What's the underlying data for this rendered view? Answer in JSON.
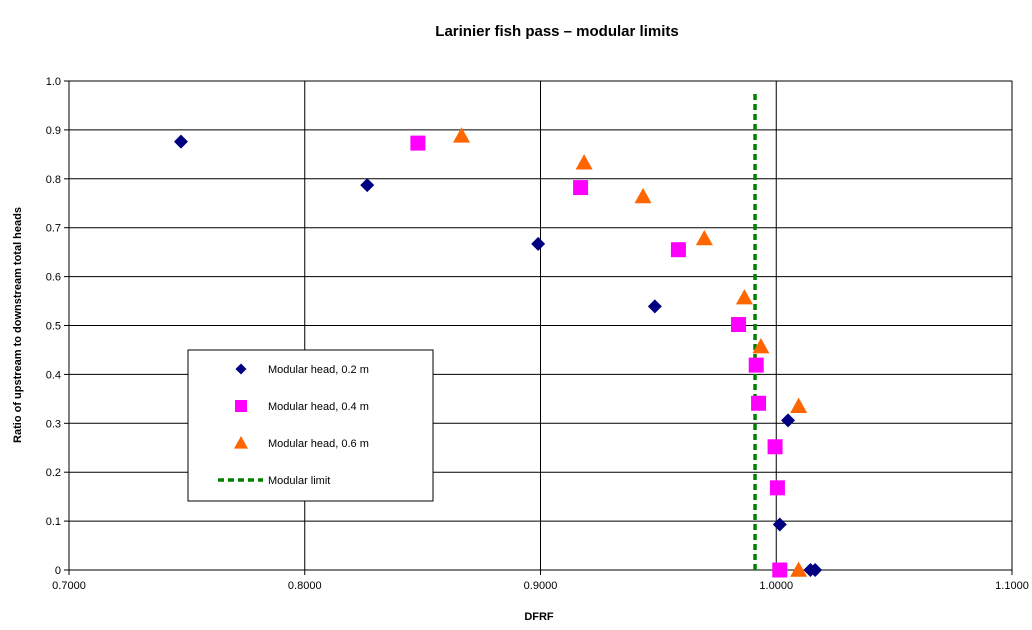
{
  "chart_data": {
    "type": "scatter",
    "title": "Larinier fish pass – modular limits",
    "xlabel": "DFRF",
    "ylabel": "Ratio of upstream to downstream total heads",
    "xlim": [
      0.7,
      1.1
    ],
    "ylim": [
      0,
      1.0
    ],
    "x_ticks": [
      "0.7000",
      "0.8000",
      "0.9000",
      "1.0000",
      "1.1000"
    ],
    "y_ticks": [
      "0",
      "0.1",
      "0.2",
      "0.3",
      "0.4",
      "0.5",
      "0.6",
      "0.7",
      "0.8",
      "0.9",
      "1.0"
    ],
    "grid": true,
    "legend_position": "lower-left",
    "series": [
      {
        "name": "Modular head, 0.2 m",
        "marker": "diamond",
        "color": "#000080",
        "points": [
          [
            0.7475,
            0.876
          ],
          [
            0.8265,
            0.787
          ],
          [
            0.899,
            0.667
          ],
          [
            0.9485,
            0.539
          ],
          [
            1.005,
            0.306
          ],
          [
            1.0015,
            0.093
          ],
          [
            1.0145,
            0.0
          ],
          [
            1.0165,
            0.0
          ]
        ]
      },
      {
        "name": "Modular head, 0.4 m",
        "marker": "square",
        "color": "#FF00FF",
        "points": [
          [
            0.848,
            0.873
          ],
          [
            0.917,
            0.782
          ],
          [
            0.9585,
            0.655
          ],
          [
            0.984,
            0.502
          ],
          [
            0.9915,
            0.419
          ],
          [
            0.9925,
            0.341
          ],
          [
            0.9995,
            0.252
          ],
          [
            1.0005,
            0.168
          ],
          [
            1.0015,
            0.0
          ]
        ]
      },
      {
        "name": "Modular head, 0.6 m",
        "marker": "triangle",
        "color": "#FF6600",
        "points": [
          [
            0.8665,
            0.888
          ],
          [
            0.9185,
            0.833
          ],
          [
            0.9435,
            0.764
          ],
          [
            0.9695,
            0.678
          ],
          [
            0.9865,
            0.557
          ],
          [
            0.9935,
            0.457
          ],
          [
            1.0095,
            0.335
          ],
          [
            1.0095,
            0.0
          ]
        ]
      },
      {
        "name": "Modular limit",
        "style": "dashed-line",
        "color": "#008000",
        "points": [
          [
            0.991,
            0.0
          ],
          [
            0.991,
            0.98
          ]
        ]
      }
    ]
  }
}
